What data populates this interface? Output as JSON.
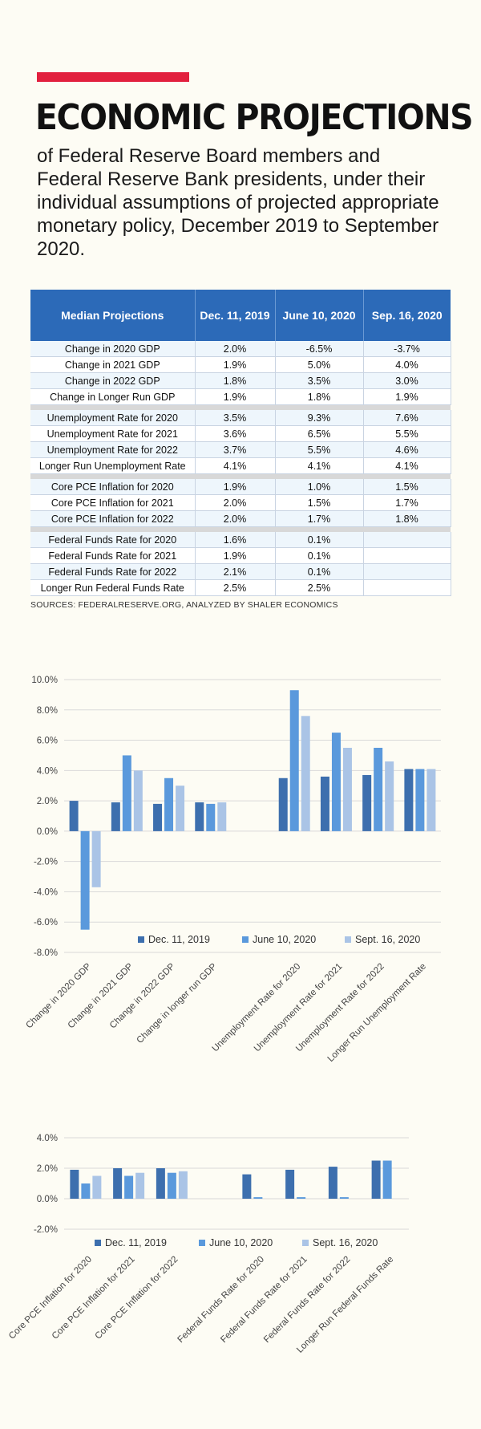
{
  "header": {
    "title": "ECONOMIC PROJECTIONS",
    "subtitle": "of Federal Reserve Board members and Federal Reserve Bank presidents, under their individual assumptions of projected appropriate monetary policy, December 2019 to September 2020."
  },
  "colors": {
    "accent": "#e2203e",
    "header_blue": "#2c6ab8",
    "series": [
      "#3d6fae",
      "#5a99dc",
      "#aac4e6"
    ]
  },
  "table": {
    "headers": [
      "Median Projections",
      "Dec. 11, 2019",
      "June 10, 2020",
      "Sep. 16, 2020"
    ],
    "groups": [
      [
        [
          "Change in 2020 GDP",
          "2.0%",
          "-6.5%",
          "-3.7%"
        ],
        [
          "Change in 2021 GDP",
          "1.9%",
          "5.0%",
          "4.0%"
        ],
        [
          "Change in 2022 GDP",
          "1.8%",
          "3.5%",
          "3.0%"
        ],
        [
          "Change in Longer Run GDP",
          "1.9%",
          "1.8%",
          "1.9%"
        ]
      ],
      [
        [
          "Unemployment Rate for 2020",
          "3.5%",
          "9.3%",
          "7.6%"
        ],
        [
          "Unemployment Rate for 2021",
          "3.6%",
          "6.5%",
          "5.5%"
        ],
        [
          "Unemployment Rate for 2022",
          "3.7%",
          "5.5%",
          "4.6%"
        ],
        [
          "Longer Run Unemployment Rate",
          "4.1%",
          "4.1%",
          "4.1%"
        ]
      ],
      [
        [
          "Core PCE Inflation for 2020",
          "1.9%",
          "1.0%",
          "1.5%"
        ],
        [
          "Core PCE Inflation for 2021",
          "2.0%",
          "1.5%",
          "1.7%"
        ],
        [
          "Core PCE Inflation for 2022",
          "2.0%",
          "1.7%",
          "1.8%"
        ]
      ],
      [
        [
          "Federal Funds Rate for 2020",
          "1.6%",
          "0.1%",
          ""
        ],
        [
          "Federal Funds Rate for 2021",
          "1.9%",
          "0.1%",
          ""
        ],
        [
          "Federal Funds Rate for 2022",
          "2.1%",
          "0.1%",
          ""
        ],
        [
          "Longer Run Federal Funds Rate",
          "2.5%",
          "2.5%",
          ""
        ]
      ]
    ]
  },
  "sources": "SOURCES: FEDERALRESERVE.ORG, ANALYZED BY SHALER ECONOMICS",
  "chart_data": [
    {
      "type": "bar",
      "categories": [
        "Change in 2020 GDP",
        "Change in 2021 GDP",
        "Change in 2022 GDP",
        "Change in longer run GDP",
        "",
        "Unemployment Rate for 2020",
        "Unemployment Rate for 2021",
        "Unemployment Rate for 2022",
        "Longer Run Unemployment Rate"
      ],
      "series": [
        {
          "name": "Dec. 11, 2019",
          "values": [
            2.0,
            1.9,
            1.8,
            1.9,
            null,
            3.5,
            3.6,
            3.7,
            4.1
          ]
        },
        {
          "name": "June 10, 2020",
          "values": [
            -6.5,
            5.0,
            3.5,
            1.8,
            null,
            9.3,
            6.5,
            5.5,
            4.1
          ]
        },
        {
          "name": "Sept. 16, 2020",
          "values": [
            -3.7,
            4.0,
            3.0,
            1.9,
            null,
            7.6,
            5.5,
            4.6,
            4.1
          ]
        }
      ],
      "yticks": [
        "10.0%",
        "8.0%",
        "6.0%",
        "4.0%",
        "2.0%",
        "0.0%",
        "-2.0%",
        "-4.0%",
        "-6.0%",
        "-8.0%"
      ],
      "ylim": [
        -8,
        10
      ],
      "grid": true,
      "legend": "bottom-inside"
    },
    {
      "type": "bar",
      "categories": [
        "Core PCE Inflation for 2020",
        "Core PCE Inflation for 2021",
        "Core PCE Inflation for 2022",
        "",
        "Federal Funds Rate for 2020",
        "Federal Funds Rate for 2021",
        "Federal Funds Rate for 2022",
        "Longer Run Federal Funds Rate"
      ],
      "series": [
        {
          "name": "Dec. 11, 2019",
          "values": [
            1.9,
            2.0,
            2.0,
            null,
            1.6,
            1.9,
            2.1,
            2.5
          ]
        },
        {
          "name": "June 10, 2020",
          "values": [
            1.0,
            1.5,
            1.7,
            null,
            0.1,
            0.1,
            0.1,
            2.5
          ]
        },
        {
          "name": "Sept. 16, 2020",
          "values": [
            1.5,
            1.7,
            1.8,
            null,
            null,
            null,
            null,
            null
          ]
        }
      ],
      "yticks": [
        "4.0%",
        "2.0%",
        "0.0%",
        "-2.0%"
      ],
      "ylim": [
        -2,
        4
      ],
      "grid": true,
      "legend": "bottom"
    }
  ]
}
